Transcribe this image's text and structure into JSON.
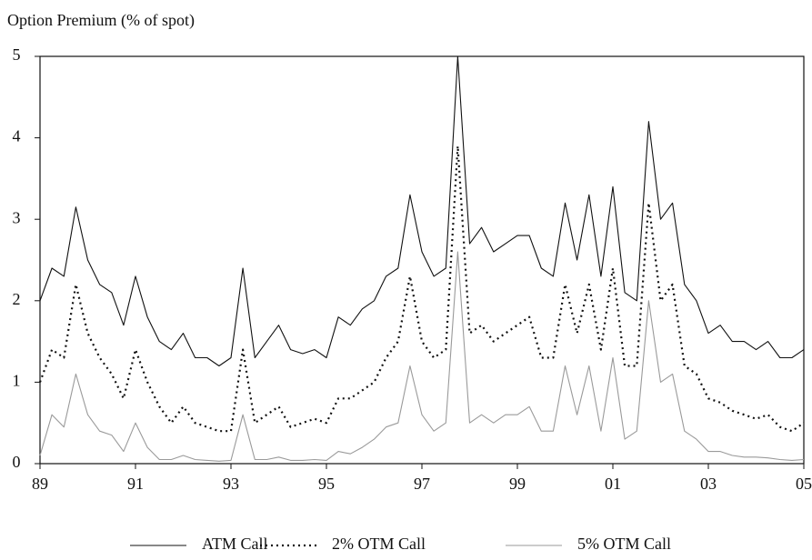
{
  "chart_data": {
    "type": "line",
    "y_label": "Option Premium (% of spot)",
    "x": [
      1989,
      1989.25,
      1989.5,
      1989.75,
      1990,
      1990.25,
      1990.5,
      1990.75,
      1991,
      1991.25,
      1991.5,
      1991.75,
      1992,
      1992.25,
      1992.5,
      1992.75,
      1993,
      1993.25,
      1993.5,
      1993.75,
      1994,
      1994.25,
      1994.5,
      1994.75,
      1995,
      1995.25,
      1995.5,
      1995.75,
      1996,
      1996.25,
      1996.5,
      1996.75,
      1997,
      1997.25,
      1997.5,
      1997.75,
      1998,
      1998.25,
      1998.5,
      1998.75,
      1999,
      1999.25,
      1999.5,
      1999.75,
      2000,
      2000.25,
      2000.5,
      2000.75,
      2001,
      2001.25,
      2001.5,
      2001.75,
      2002,
      2002.25,
      2002.5,
      2002.75,
      2003,
      2003.25,
      2003.5,
      2003.75,
      2004,
      2004.25,
      2004.5,
      2004.75,
      2005
    ],
    "series": [
      {
        "name": "ATM Call",
        "color": "#111111",
        "dash": "solid",
        "values": [
          2.0,
          2.4,
          2.3,
          3.15,
          2.5,
          2.2,
          2.1,
          1.7,
          2.3,
          1.8,
          1.5,
          1.4,
          1.6,
          1.3,
          1.3,
          1.2,
          1.3,
          2.4,
          1.3,
          1.5,
          1.7,
          1.4,
          1.35,
          1.4,
          1.3,
          1.8,
          1.7,
          1.9,
          2.0,
          2.3,
          2.4,
          3.3,
          2.6,
          2.3,
          2.4,
          5.0,
          2.7,
          2.9,
          2.6,
          2.7,
          2.8,
          2.8,
          2.4,
          2.3,
          3.2,
          2.5,
          3.3,
          2.3,
          3.4,
          2.1,
          2.0,
          4.2,
          3.0,
          3.2,
          2.2,
          2.0,
          1.6,
          1.7,
          1.5,
          1.5,
          1.4,
          1.5,
          1.3,
          1.3,
          1.4
        ]
      },
      {
        "name": "2% OTM Call",
        "color": "#111111",
        "dash": "dotted",
        "values": [
          1.0,
          1.4,
          1.3,
          2.2,
          1.6,
          1.3,
          1.1,
          0.8,
          1.4,
          1.0,
          0.7,
          0.5,
          0.7,
          0.5,
          0.45,
          0.4,
          0.4,
          1.4,
          0.5,
          0.6,
          0.7,
          0.45,
          0.5,
          0.55,
          0.5,
          0.8,
          0.8,
          0.9,
          1.0,
          1.3,
          1.5,
          2.3,
          1.5,
          1.3,
          1.4,
          3.9,
          1.6,
          1.7,
          1.5,
          1.6,
          1.7,
          1.8,
          1.3,
          1.3,
          2.2,
          1.6,
          2.2,
          1.4,
          2.4,
          1.2,
          1.2,
          3.2,
          2.0,
          2.2,
          1.2,
          1.1,
          0.8,
          0.75,
          0.65,
          0.6,
          0.55,
          0.6,
          0.45,
          0.4,
          0.5
        ]
      },
      {
        "name": "5% OTM Call",
        "color": "#9a9a9a",
        "dash": "solid",
        "values": [
          0.1,
          0.6,
          0.45,
          1.1,
          0.6,
          0.4,
          0.35,
          0.15,
          0.5,
          0.2,
          0.05,
          0.05,
          0.1,
          0.05,
          0.04,
          0.03,
          0.04,
          0.6,
          0.05,
          0.05,
          0.08,
          0.04,
          0.04,
          0.05,
          0.04,
          0.15,
          0.12,
          0.2,
          0.3,
          0.45,
          0.5,
          1.2,
          0.6,
          0.4,
          0.5,
          2.6,
          0.5,
          0.6,
          0.5,
          0.6,
          0.6,
          0.7,
          0.4,
          0.4,
          1.2,
          0.6,
          1.2,
          0.4,
          1.3,
          0.3,
          0.4,
          2.0,
          1.0,
          1.1,
          0.4,
          0.3,
          0.15,
          0.15,
          0.1,
          0.08,
          0.08,
          0.07,
          0.05,
          0.04,
          0.05
        ]
      }
    ],
    "xlim": [
      1989,
      2005
    ],
    "xticks": [
      {
        "value": 1989,
        "label": "89"
      },
      {
        "value": 1991,
        "label": "91"
      },
      {
        "value": 1993,
        "label": "93"
      },
      {
        "value": 1995,
        "label": "95"
      },
      {
        "value": 1997,
        "label": "97"
      },
      {
        "value": 1999,
        "label": "99"
      },
      {
        "value": 2001,
        "label": "01"
      },
      {
        "value": 2003,
        "label": "03"
      },
      {
        "value": 2005,
        "label": "05"
      }
    ],
    "ylim": [
      0,
      5
    ],
    "yticks": [
      0,
      1,
      2,
      3,
      4,
      5
    ],
    "grid": false,
    "legend": "bottom"
  }
}
